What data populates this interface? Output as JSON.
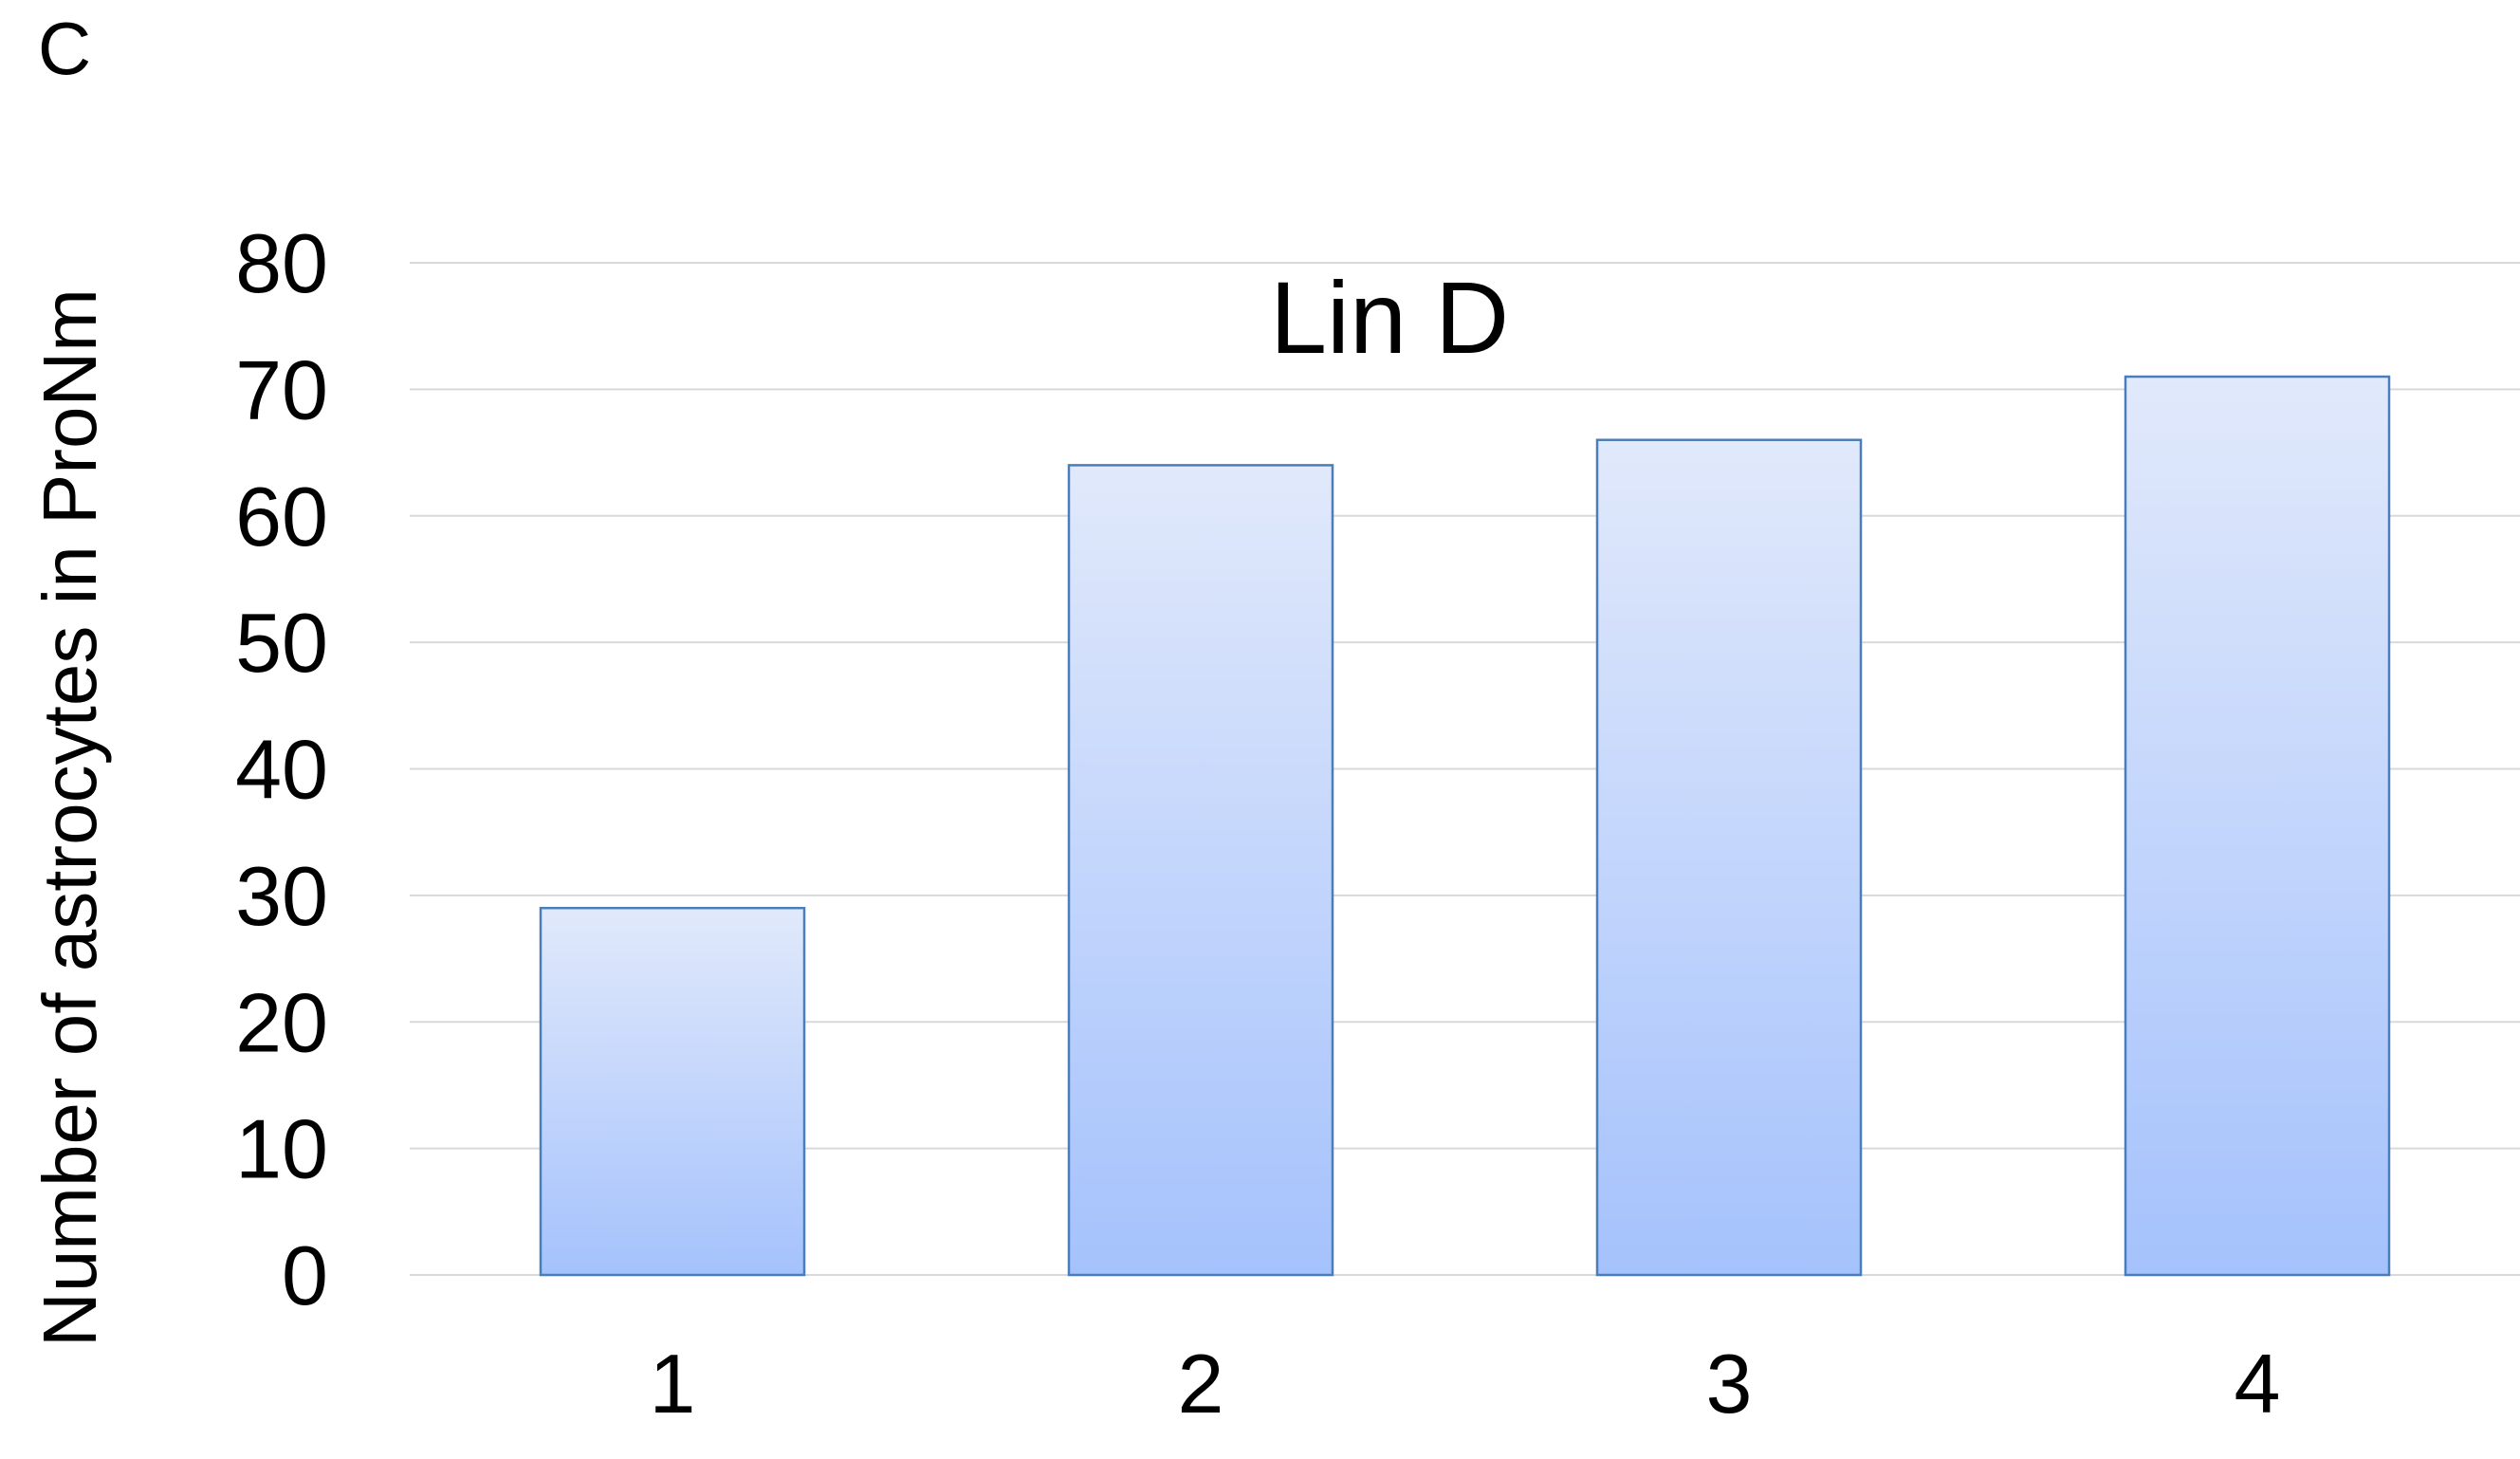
{
  "panel_label": "C",
  "chart_data": {
    "type": "bar",
    "title": "Lin D",
    "xlabel": "",
    "ylabel": "Number of astrocytes in ProNm",
    "categories": [
      "1",
      "2",
      "3",
      "4"
    ],
    "values": [
      29,
      64,
      66,
      71
    ],
    "ylim": [
      0,
      80
    ],
    "yticks": [
      0,
      10,
      20,
      30,
      40,
      50,
      60,
      70,
      80
    ],
    "grid": true,
    "legend": "none",
    "colors": {
      "bar_fill_top": "#e1e9fb",
      "bar_fill_bottom": "#a5c2fc",
      "bar_stroke": "#4a7ebb",
      "gridline": "#d9d9d9"
    }
  }
}
